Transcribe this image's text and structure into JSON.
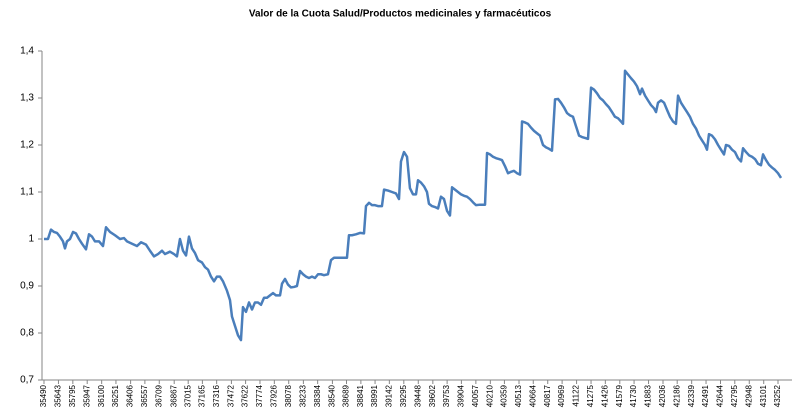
{
  "chart_data": {
    "type": "line",
    "title": "Valor de la Cuota Salud/Productos medicinales y farmacéuticos",
    "color": "#4a7ebb",
    "xlim": [
      35469,
      43400
    ],
    "xticks": [
      35490,
      35643,
      35795,
      35947,
      36100,
      36251,
      36406,
      36557,
      36709,
      36867,
      37015,
      37165,
      37316,
      37472,
      37622,
      37774,
      37926,
      38078,
      38233,
      38384,
      38540,
      38689,
      38841,
      38991,
      39142,
      39295,
      39448,
      39602,
      39753,
      39904,
      40057,
      40210,
      40359,
      40513,
      40664,
      40817,
      40969,
      41122,
      41275,
      41426,
      41579,
      41730,
      41883,
      42036,
      42186,
      42339,
      42491,
      42644,
      42795,
      42948,
      43101,
      43252
    ],
    "ylim": [
      0.7,
      1.4
    ],
    "yticks": [
      {
        "value": 0.7,
        "label": "0,7"
      },
      {
        "value": 0.8,
        "label": "0,8"
      },
      {
        "value": 0.9,
        "label": "0,9"
      },
      1,
      {
        "value": 1.1,
        "label": "1,1"
      },
      {
        "value": 1.2,
        "label": "1,2"
      },
      {
        "value": 1.3,
        "label": "1,3"
      },
      {
        "value": 1.4,
        "label": "1,4"
      }
    ],
    "x": [
      35490,
      35532,
      35564,
      35596,
      35627,
      35659,
      35691,
      35712,
      35733,
      35765,
      35797,
      35828,
      35860,
      35892,
      35934,
      35966,
      35998,
      36029,
      36072,
      36114,
      36146,
      36188,
      36241,
      36294,
      36336,
      36368,
      36421,
      36473,
      36516,
      36569,
      36611,
      36653,
      36696,
      36738,
      36770,
      36822,
      36865,
      36896,
      36928,
      36960,
      36992,
      37023,
      37055,
      37087,
      37119,
      37161,
      37193,
      37224,
      37256,
      37288,
      37319,
      37351,
      37383,
      37425,
      37457,
      37478,
      37510,
      37542,
      37573,
      37594,
      37626,
      37658,
      37690,
      37721,
      37753,
      37785,
      37817,
      37848,
      37880,
      37912,
      37943,
      37986,
      38007,
      38039,
      38070,
      38102,
      38134,
      38165,
      38197,
      38229,
      38261,
      38292,
      38324,
      38356,
      38388,
      38419,
      38451,
      38493,
      38525,
      38557,
      38599,
      38652,
      38694,
      38715,
      38747,
      38789,
      38832,
      38874,
      38895,
      38927,
      38959,
      38990,
      39022,
      39064,
      39086,
      39128,
      39170,
      39212,
      39244,
      39265,
      39297,
      39329,
      39360,
      39392,
      39424,
      39445,
      39477,
      39509,
      39540,
      39561,
      39593,
      39625,
      39657,
      39688,
      39720,
      39752,
      39783,
      39805,
      39836,
      39868,
      39900,
      39932,
      39963,
      39995,
      40027,
      40058,
      40101,
      40154,
      40175,
      40206,
      40238,
      40270,
      40302,
      40333,
      40365,
      40397,
      40429,
      40460,
      40492,
      40524,
      40545,
      40577,
      40608,
      40640,
      40672,
      40703,
      40735,
      40767,
      40799,
      40830,
      40862,
      40894,
      40926,
      40957,
      40989,
      41021,
      41052,
      41084,
      41116,
      41148,
      41179,
      41211,
      41243,
      41275,
      41306,
      41338,
      41370,
      41401,
      41433,
      41465,
      41497,
      41528,
      41560,
      41592,
      41613,
      41634,
      41666,
      41698,
      41729,
      41761,
      41793,
      41814,
      41846,
      41877,
      41909,
      41941,
      41962,
      41983,
      42015,
      42047,
      42078,
      42110,
      42142,
      42173,
      42195,
      42226,
      42258,
      42290,
      42321,
      42353,
      42385,
      42417,
      42448,
      42480,
      42501,
      42522,
      42554,
      42586,
      42618,
      42649,
      42681,
      42702,
      42734,
      42766,
      42797,
      42829,
      42861,
      42882,
      42914,
      42946,
      42977,
      43009,
      43041,
      43072,
      43094,
      43125,
      43157,
      43189,
      43220,
      43252,
      43284
    ],
    "values": [
      1.0,
      1.0,
      1.02,
      1.015,
      1.013,
      1.005,
      0.995,
      0.98,
      0.995,
      1.0,
      1.015,
      1.012,
      1.0,
      0.99,
      0.978,
      1.01,
      1.005,
      0.995,
      0.995,
      0.985,
      1.025,
      1.015,
      1.008,
      1.0,
      1.002,
      0.995,
      0.99,
      0.985,
      0.993,
      0.988,
      0.975,
      0.963,
      0.968,
      0.975,
      0.968,
      0.973,
      0.968,
      0.963,
      1.0,
      0.975,
      0.965,
      1.005,
      0.98,
      0.97,
      0.955,
      0.95,
      0.94,
      0.935,
      0.92,
      0.91,
      0.92,
      0.92,
      0.91,
      0.89,
      0.87,
      0.835,
      0.815,
      0.795,
      0.785,
      0.855,
      0.845,
      0.865,
      0.85,
      0.865,
      0.865,
      0.86,
      0.875,
      0.875,
      0.88,
      0.885,
      0.88,
      0.88,
      0.905,
      0.915,
      0.903,
      0.897,
      0.898,
      0.9,
      0.932,
      0.925,
      0.92,
      0.917,
      0.92,
      0.917,
      0.925,
      0.925,
      0.923,
      0.925,
      0.955,
      0.96,
      0.96,
      0.96,
      0.96,
      1.008,
      1.008,
      1.01,
      1.013,
      1.012,
      1.07,
      1.077,
      1.072,
      1.072,
      1.07,
      1.07,
      1.105,
      1.103,
      1.1,
      1.097,
      1.085,
      1.165,
      1.185,
      1.175,
      1.108,
      1.095,
      1.095,
      1.125,
      1.12,
      1.112,
      1.1,
      1.075,
      1.07,
      1.068,
      1.065,
      1.09,
      1.085,
      1.06,
      1.05,
      1.11,
      1.105,
      1.1,
      1.095,
      1.092,
      1.09,
      1.085,
      1.078,
      1.072,
      1.073,
      1.073,
      1.183,
      1.18,
      1.175,
      1.172,
      1.17,
      1.168,
      1.155,
      1.14,
      1.143,
      1.145,
      1.14,
      1.137,
      1.25,
      1.248,
      1.245,
      1.237,
      1.23,
      1.225,
      1.22,
      1.2,
      1.195,
      1.192,
      1.188,
      1.297,
      1.298,
      1.29,
      1.28,
      1.268,
      1.263,
      1.26,
      1.24,
      1.22,
      1.217,
      1.215,
      1.213,
      1.322,
      1.318,
      1.31,
      1.3,
      1.295,
      1.287,
      1.28,
      1.27,
      1.26,
      1.257,
      1.25,
      1.245,
      1.358,
      1.35,
      1.342,
      1.335,
      1.325,
      1.308,
      1.32,
      1.305,
      1.295,
      1.285,
      1.278,
      1.27,
      1.29,
      1.295,
      1.29,
      1.275,
      1.26,
      1.25,
      1.245,
      1.305,
      1.29,
      1.28,
      1.27,
      1.26,
      1.245,
      1.235,
      1.22,
      1.21,
      1.2,
      1.19,
      1.223,
      1.22,
      1.212,
      1.2,
      1.19,
      1.18,
      1.2,
      1.198,
      1.19,
      1.185,
      1.172,
      1.165,
      1.193,
      1.185,
      1.178,
      1.175,
      1.17,
      1.16,
      1.157,
      1.18,
      1.168,
      1.158,
      1.152,
      1.147,
      1.14,
      1.13
    ]
  }
}
